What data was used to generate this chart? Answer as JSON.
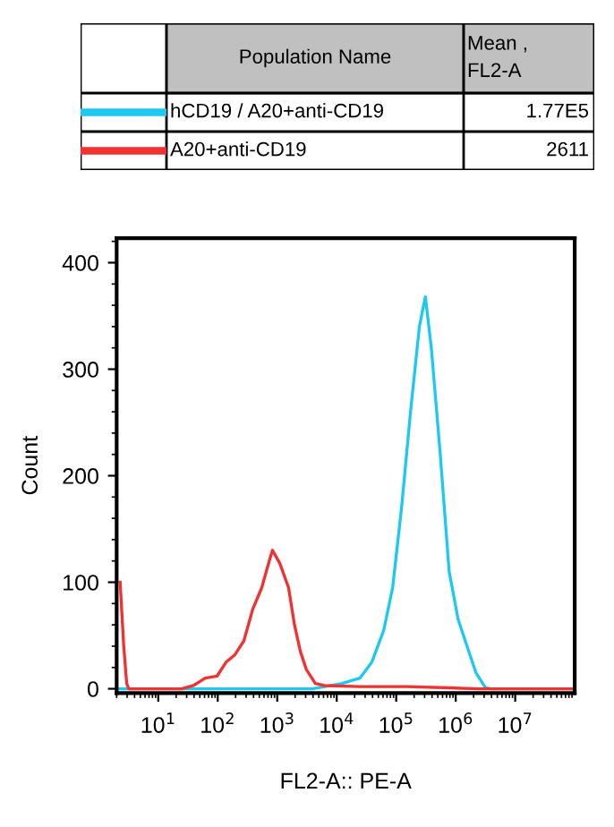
{
  "chart_data": {
    "type": "line",
    "xlabel": "FL2-A:: PE-A",
    "ylabel": "Count",
    "log": "x",
    "legend": "top",
    "grid": false,
    "marker": "none",
    "line_style": "solid",
    "annotations": [
      "Population Name",
      "Mean ,\nFL2-A",
      "1.77E5",
      "2611"
    ],
    "xlim": [
      2,
      100000000
    ],
    "ylim": [
      -4,
      423
    ],
    "xticks": [
      {
        "value": 10,
        "label": "10$^{1}$"
      },
      {
        "value": 100,
        "label": "10$^{2}$"
      },
      {
        "value": 1000,
        "label": "10$^{3}$"
      },
      {
        "value": 10000,
        "label": "10$^{4}$"
      },
      {
        "value": 100000,
        "label": "10$^{5}$"
      },
      {
        "value": 1000000,
        "label": "10$^{6}$"
      },
      {
        "value": 10000000,
        "label": "10$^{7}$"
      }
    ],
    "yticks": [
      0,
      100,
      200,
      300,
      400
    ],
    "series": [
      {
        "name": "hCD19 / A20+anti-CD19",
        "color": "#1ec8f0",
        "x": [
          2,
          3890,
          12300,
          24500,
          38900,
          61700,
          87100,
          123000,
          174000,
          245000,
          309000,
          389000,
          550000,
          776000,
          1100000,
          1550000,
          2190000,
          3160000,
          3890000,
          100000000
        ],
        "values": [
          0,
          0,
          5,
          10,
          25,
          55,
          95,
          170,
          260,
          340,
          368,
          320,
          220,
          110,
          65,
          40,
          15,
          1,
          0,
          0
        ]
      },
      {
        "name": "A20+anti-CD19",
        "color": "#f03232",
        "x": [
          2.29,
          2.63,
          2.95,
          3.2,
          24.5,
          38.9,
          61.7,
          97.7,
          138,
          195,
          275,
          389,
          550,
          692,
          832,
          1100,
          1550,
          1950,
          2450,
          3090,
          4370,
          6170,
          24500,
          155000,
          2510000,
          100000000
        ],
        "values": [
          100,
          40,
          5,
          0,
          0,
          3,
          10,
          12,
          25,
          32,
          45,
          75,
          95,
          115,
          130,
          118,
          95,
          60,
          35,
          18,
          5,
          3,
          2,
          2,
          0,
          0
        ]
      }
    ]
  }
}
